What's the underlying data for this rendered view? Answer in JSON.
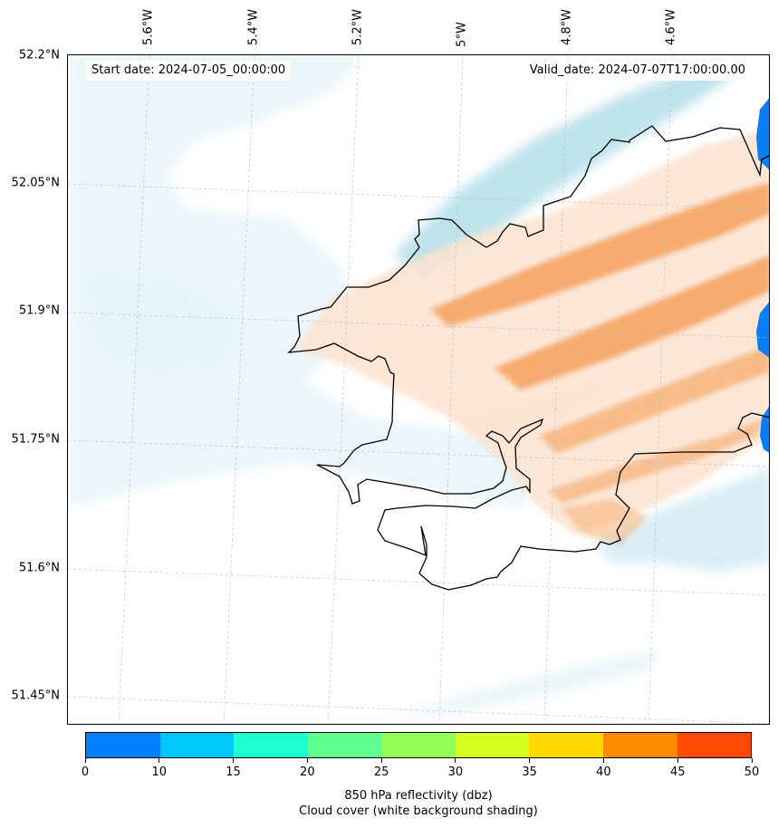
{
  "header": {
    "start_date": "Start date: 2024-07-05_00:00:00",
    "valid_date": "Valid_date: 2024-07-07T17:00:00.00"
  },
  "map": {
    "lat_labels": [
      "52.2°N",
      "52.05°N",
      "51.9°N",
      "51.75°N",
      "51.6°N",
      "51.45°N"
    ],
    "lon_labels": [
      "5.6°W",
      "5.4°W",
      "5.2°W",
      "5°W",
      "4.8°W",
      "4.6°W"
    ],
    "colors": {
      "cloud": "#a9d9e6",
      "cloud_light": "#e6f4f8",
      "reflectivity_low": "#fbe3cf",
      "reflectivity_mid": "#f5a968",
      "reflectivity_high": "#0a7ff5",
      "coast": "#000000",
      "grid": "#bbbbbb"
    }
  },
  "colorbar": {
    "bins": [
      "#0080ff",
      "#00c8ff",
      "#1effd0",
      "#5fff8f",
      "#96ff55",
      "#d4ff20",
      "#ffd900",
      "#ff8c00",
      "#ff4a00"
    ],
    "tick_labels": [
      "0",
      "10",
      "15",
      "20",
      "25",
      "30",
      "35",
      "40",
      "45",
      "50"
    ],
    "title_line1": "850 hPa reflectivity (dbz)",
    "title_line2": "Cloud cover (white background shading)"
  }
}
